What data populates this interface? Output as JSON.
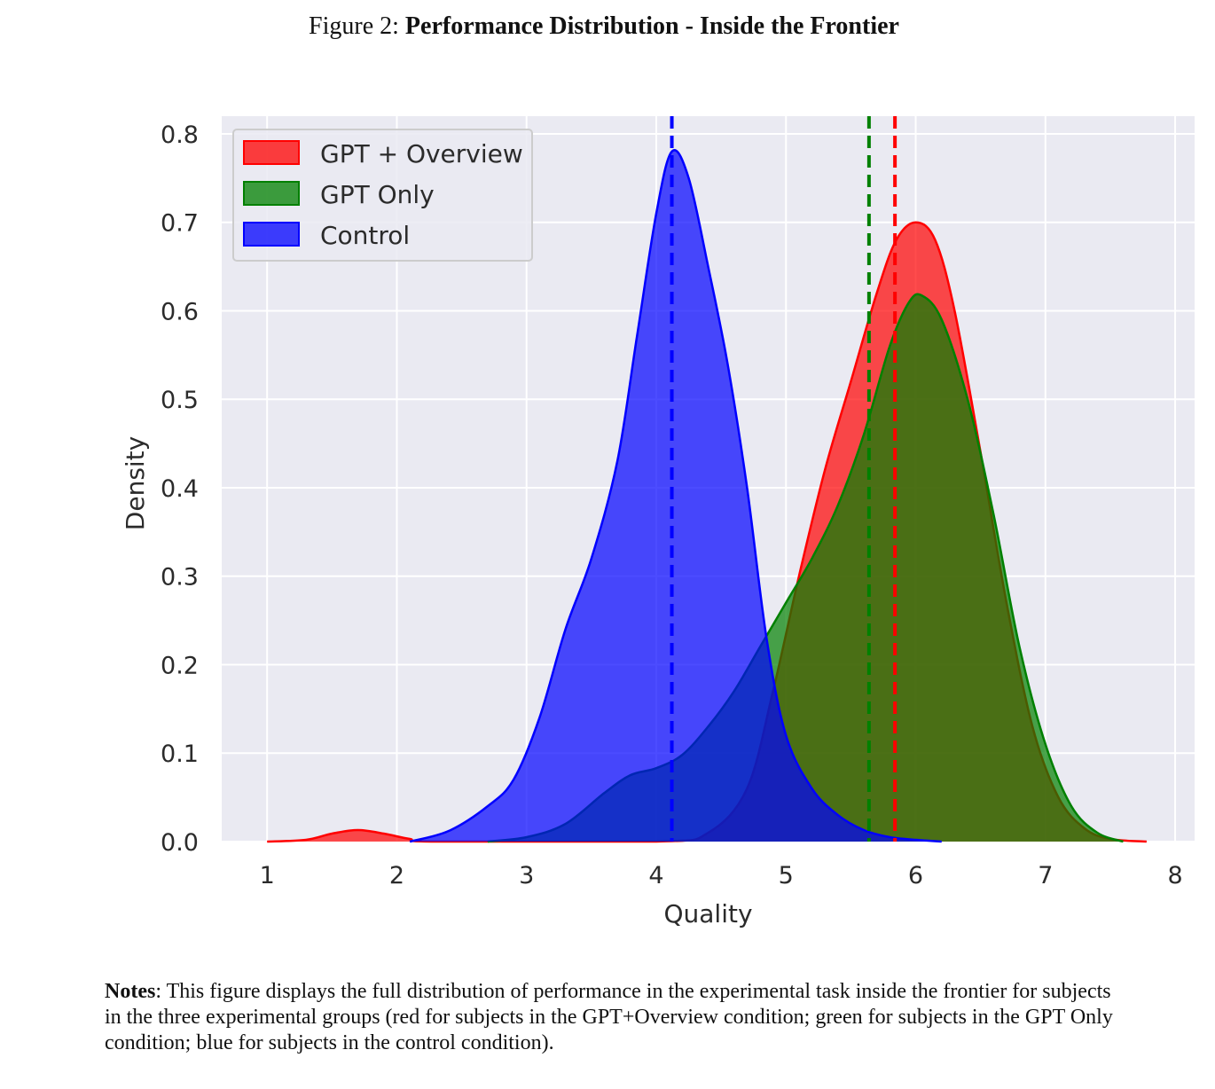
{
  "figure": {
    "prefix": "Figure 2:",
    "title": "Performance Distribution - Inside the Frontier"
  },
  "notes": {
    "lead": "Notes",
    "text": ": This figure displays the full distribution of performance in the experimental task inside the frontier for subjects in the three experimental groups (red for subjects in the GPT+Overview condition; green for subjects in the GPT Only condition; blue for subjects in the control condition)."
  },
  "chart_data": {
    "type": "area",
    "subtype": "kde-density",
    "xlabel": "Quality",
    "ylabel": "Density",
    "xlim": [
      0.65,
      8.15
    ],
    "ylim": [
      0.0,
      0.82
    ],
    "xticks": [
      1,
      2,
      3,
      4,
      5,
      6,
      7,
      8
    ],
    "yticks": [
      0.0,
      0.1,
      0.2,
      0.3,
      0.4,
      0.5,
      0.6,
      0.7,
      0.8
    ],
    "grid": true,
    "legend_position": "top-left",
    "colors": {
      "background": "#eaeaf2",
      "grid": "#ffffff",
      "GPT + Overview": "#ff0000",
      "GPT Only": "#008000",
      "Control": "#0000ff"
    },
    "series": [
      {
        "name": "GPT + Overview",
        "color": "#ff0000",
        "mean_line": 5.84,
        "x": [
          1.0,
          1.3,
          1.5,
          1.7,
          1.9,
          2.1,
          2.3,
          4.0,
          4.4,
          4.7,
          4.9,
          5.1,
          5.3,
          5.5,
          5.7,
          5.85,
          6.0,
          6.15,
          6.3,
          6.5,
          6.7,
          6.9,
          7.1,
          7.3,
          7.5,
          7.78
        ],
        "y": [
          0.0,
          0.002,
          0.009,
          0.013,
          0.009,
          0.003,
          0.0,
          0.0,
          0.01,
          0.06,
          0.17,
          0.3,
          0.42,
          0.52,
          0.62,
          0.68,
          0.7,
          0.68,
          0.6,
          0.44,
          0.27,
          0.13,
          0.05,
          0.015,
          0.003,
          0.0
        ]
      },
      {
        "name": "GPT Only",
        "color": "#008000",
        "mean_line": 5.64,
        "x": [
          2.7,
          3.0,
          3.3,
          3.6,
          3.8,
          4.0,
          4.2,
          4.4,
          4.6,
          4.8,
          5.0,
          5.2,
          5.4,
          5.6,
          5.8,
          5.95,
          6.05,
          6.2,
          6.4,
          6.6,
          6.8,
          7.0,
          7.2,
          7.4,
          7.6
        ],
        "y": [
          0.0,
          0.005,
          0.02,
          0.055,
          0.075,
          0.083,
          0.098,
          0.13,
          0.17,
          0.22,
          0.27,
          0.32,
          0.38,
          0.46,
          0.56,
          0.61,
          0.617,
          0.59,
          0.5,
          0.37,
          0.22,
          0.11,
          0.04,
          0.01,
          0.0
        ]
      },
      {
        "name": "Control",
        "color": "#0000ff",
        "mean_line": 4.12,
        "x": [
          2.1,
          2.4,
          2.7,
          2.9,
          3.1,
          3.3,
          3.5,
          3.7,
          3.85,
          4.0,
          4.12,
          4.25,
          4.4,
          4.55,
          4.7,
          4.85,
          5.0,
          5.2,
          5.4,
          5.6,
          5.8,
          6.0,
          6.2
        ],
        "y": [
          0.0,
          0.012,
          0.04,
          0.07,
          0.14,
          0.24,
          0.32,
          0.43,
          0.57,
          0.71,
          0.78,
          0.75,
          0.65,
          0.54,
          0.4,
          0.23,
          0.12,
          0.06,
          0.03,
          0.013,
          0.005,
          0.002,
          0.0
        ]
      }
    ]
  }
}
